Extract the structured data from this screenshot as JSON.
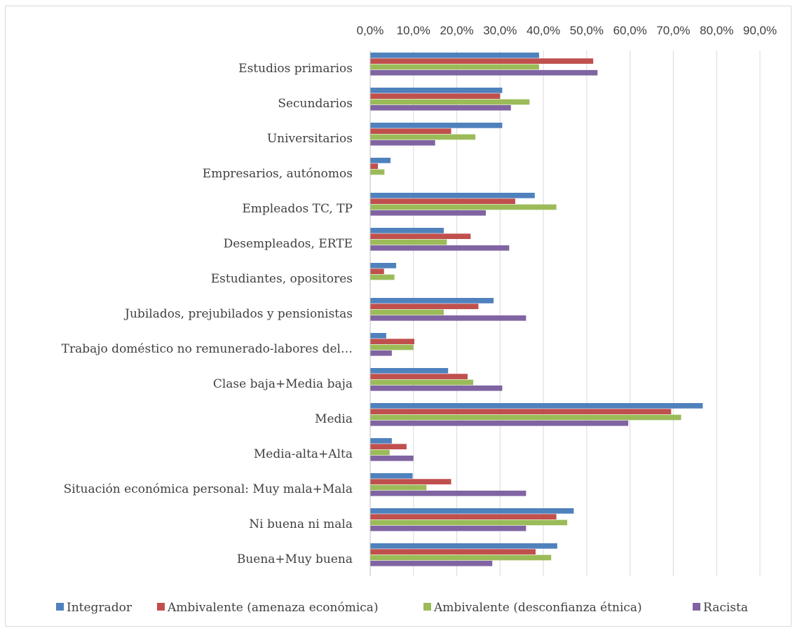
{
  "chart_data": {
    "type": "bar",
    "orientation": "horizontal",
    "title": "",
    "xlabel": "",
    "ylabel": "",
    "xlim": [
      0,
      90
    ],
    "x_ticks": [
      "0,0%",
      "10,0%",
      "20,0%",
      "30,0%",
      "40,0%",
      "50,0%",
      "60,0%",
      "70,0%",
      "80,0%",
      "90,0%"
    ],
    "x_axis_position": "top",
    "grid": true,
    "legend_position": "bottom",
    "categories": [
      "Estudios primarios",
      "Secundarios",
      "Universitarios",
      "Empresarios, autónomos",
      "Empleados TC, TP",
      "Desempleados, ERTE",
      "Estudiantes, opositores",
      "Jubilados, prejubilados y pensionistas",
      "Trabajo doméstico no remunerado-labores del…",
      "Clase baja+Media baja",
      "Media",
      "Media-alta+Alta",
      "Situación económica personal: Muy mala+Mala",
      "Ni buena ni mala",
      "Buena+Muy buena"
    ],
    "series": [
      {
        "name": "Integrador",
        "color": "#4f81bd",
        "values": [
          39.0,
          30.5,
          30.5,
          4.7,
          38.0,
          17.0,
          6.0,
          28.5,
          3.7,
          18.0,
          76.8,
          5.0,
          9.8,
          47.0,
          43.2
        ]
      },
      {
        "name": "Ambivalente (amenaza económica)",
        "color": "#c0504d",
        "values": [
          51.5,
          30.0,
          18.7,
          1.8,
          33.5,
          23.2,
          3.2,
          25.0,
          10.2,
          22.5,
          69.5,
          8.4,
          18.7,
          43.0,
          38.2
        ]
      },
      {
        "name": "Ambivalente (desconfianza étnica)",
        "color": "#9bbb59",
        "values": [
          39.0,
          36.8,
          24.3,
          3.3,
          43.0,
          17.7,
          5.6,
          17.0,
          10.0,
          23.8,
          71.8,
          4.5,
          13.0,
          45.5,
          41.8
        ]
      },
      {
        "name": "Racista",
        "color": "#8064a2",
        "values": [
          52.5,
          32.5,
          15.0,
          0,
          26.7,
          32.1,
          0,
          36.0,
          5.0,
          30.5,
          59.6,
          10.0,
          36.0,
          36.0,
          28.2
        ]
      }
    ]
  }
}
